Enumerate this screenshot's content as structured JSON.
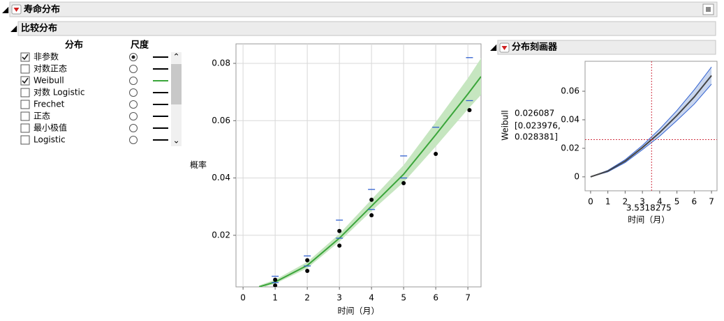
{
  "window": {
    "title": "寿命分布",
    "section": "比较分布",
    "profiler_title": "分布刻画器"
  },
  "panel": {
    "headers": [
      "分布",
      "尺度"
    ],
    "rows": [
      {
        "label": "非参数",
        "checked": true,
        "selected": true,
        "color": "#000000"
      },
      {
        "label": "对数正态",
        "checked": false,
        "selected": false,
        "color": "#000000"
      },
      {
        "label": "Weibull",
        "checked": true,
        "selected": false,
        "color": "#3aa53a"
      },
      {
        "label": "对数 Logistic",
        "checked": false,
        "selected": false,
        "color": "#000000"
      },
      {
        "label": "Frechet",
        "checked": false,
        "selected": false,
        "color": "#000000"
      },
      {
        "label": "正态",
        "checked": false,
        "selected": false,
        "color": "#000000"
      },
      {
        "label": "最小极值",
        "checked": false,
        "selected": false,
        "color": "#000000"
      },
      {
        "label": "Logistic",
        "checked": false,
        "selected": false,
        "color": "#000000"
      }
    ]
  },
  "chart_data": [
    {
      "type": "scatter",
      "xlabel": "时间（月）",
      "ylabel": "概率",
      "xlim": [
        -0.22,
        7.41
      ],
      "ylim": [
        0.002,
        0.0868
      ],
      "xticks": [
        0,
        1,
        2,
        3,
        4,
        5,
        6,
        7
      ],
      "yticks": [
        0.02,
        0.04,
        0.06,
        0.08
      ],
      "grid": true,
      "points": {
        "color": "#000000",
        "x": [
          1,
          1,
          2,
          2,
          3,
          3,
          4,
          4,
          5,
          6,
          7.05
        ],
        "y": [
          0.0025,
          0.0045,
          0.0076,
          0.0113,
          0.0164,
          0.0215,
          0.027,
          0.0324,
          0.0382,
          0.0484,
          0.0637
        ]
      },
      "bounds": {
        "color": "#3060d0",
        "x": [
          1,
          1,
          2,
          2,
          3,
          3,
          4,
          4,
          5,
          5,
          6,
          7.05,
          7.05
        ],
        "y": [
          0.0057,
          0.0035,
          0.0128,
          0.0093,
          0.0253,
          0.019,
          0.036,
          0.029,
          0.0477,
          0.04,
          0.0577,
          0.082,
          0.067
        ]
      },
      "fit": {
        "color": "#3aa53a",
        "band": "#c6e6c0",
        "x": [
          0.5,
          1,
          2,
          3,
          4,
          5,
          6,
          7,
          7.41
        ],
        "y": [
          0.002,
          0.0037,
          0.0095,
          0.019,
          0.0302,
          0.0413,
          0.0551,
          0.0693,
          0.0754
        ],
        "lower": [
          0.0015,
          0.0031,
          0.0085,
          0.0178,
          0.0285,
          0.0385,
          0.051,
          0.064,
          0.069
        ],
        "upper": [
          0.0025,
          0.0045,
          0.0107,
          0.0205,
          0.0325,
          0.0445,
          0.0595,
          0.0748,
          0.0818
        ]
      }
    },
    {
      "type": "line",
      "xlabel": "时间（月）",
      "ylabel": "Weibull",
      "xlim": [
        -0.32,
        7.32
      ],
      "ylim": [
        -0.0098,
        0.081
      ],
      "xticks": [
        0,
        1,
        2,
        3,
        4,
        5,
        6,
        7
      ],
      "yticks": [
        0,
        0.02,
        0.04,
        0.06
      ],
      "grid": false,
      "fit": {
        "color": "#444444",
        "band": "#c9d6ee",
        "edge": "#3060d0",
        "x": [
          0,
          1,
          2,
          3,
          4,
          5,
          6,
          7
        ],
        "y": [
          0,
          0.004,
          0.011,
          0.0205,
          0.031,
          0.043,
          0.056,
          0.071
        ],
        "lower": [
          0,
          0.0035,
          0.01,
          0.019,
          0.0285,
          0.0395,
          0.051,
          0.065
        ],
        "upper": [
          0,
          0.0045,
          0.012,
          0.022,
          0.0335,
          0.0465,
          0.061,
          0.077
        ]
      },
      "crosshair": {
        "x": 3.5318275,
        "y": 0.026087,
        "color": "#d03040",
        "interval_color": "#3060d0",
        "interval_labels": [
          "[0.023976,",
          "0.028381]"
        ]
      }
    }
  ]
}
